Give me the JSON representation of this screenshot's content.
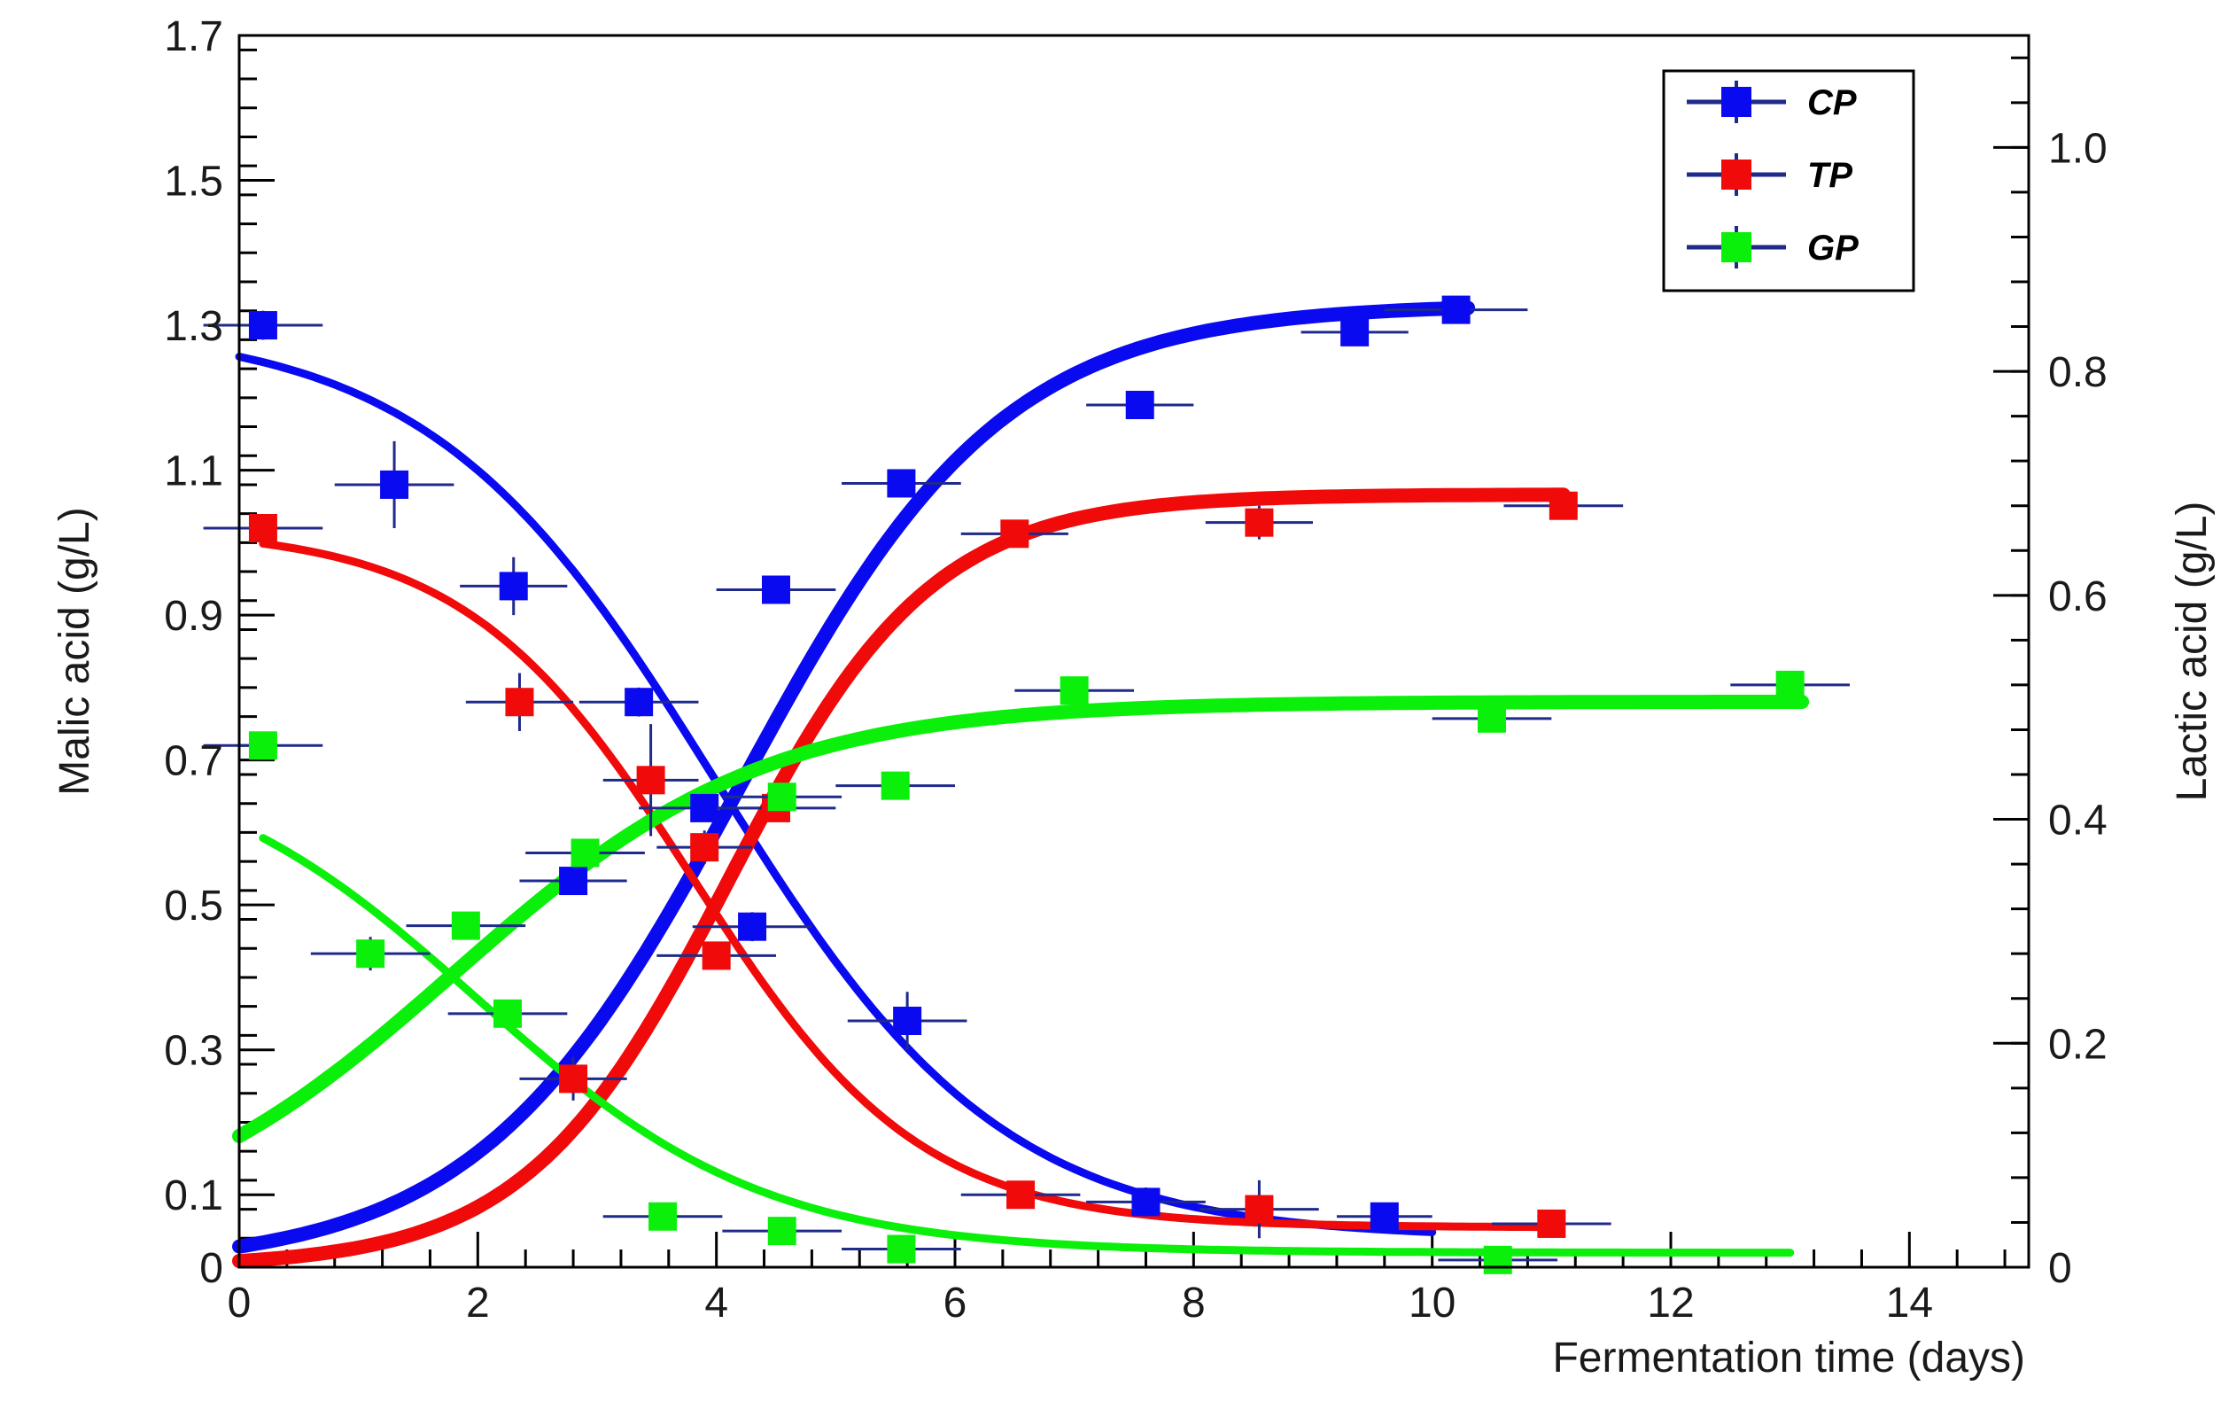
{
  "chart_data": {
    "type": "scatter",
    "title": "",
    "xlabel": "Fermentation time (days)",
    "ylabel_left": "Malic acid (g/L)",
    "ylabel_right": "Lactic acid (g/L)",
    "xlim": [
      0,
      15
    ],
    "ylim_left": [
      0,
      1.7
    ],
    "ylim_right": [
      0,
      1.1
    ],
    "x_ticks": [
      "0",
      "2",
      "4",
      "6",
      "8",
      "10",
      "12",
      "14"
    ],
    "y_left_ticks": [
      "0",
      "0.1",
      "0.3",
      "0.5",
      "0.7",
      "0.9",
      "1.1",
      "1.3",
      "1.5",
      "1.7"
    ],
    "y_right_ticks": [
      "0",
      "0.2",
      "0.4",
      "0.6",
      "0.8",
      "1.0"
    ],
    "legend_position": "top-right",
    "legend": [
      {
        "name": "CP",
        "color": "#0a0af0"
      },
      {
        "name": "TP",
        "color": "#f00a0a"
      },
      {
        "name": "GP",
        "color": "#0af00a"
      }
    ],
    "series": [
      {
        "name": "CP",
        "color": "#0a0af0",
        "malic_points": [
          {
            "x": 0.2,
            "y": 1.3,
            "xerr": 0.5,
            "yerr": 0.02
          },
          {
            "x": 1.3,
            "y": 1.08,
            "xerr": 0.5,
            "yerr": 0.06
          },
          {
            "x": 2.3,
            "y": 0.94,
            "xerr": 0.45,
            "yerr": 0.04
          },
          {
            "x": 3.35,
            "y": 0.78,
            "xerr": 0.5,
            "yerr": 0.02
          },
          {
            "x": 4.3,
            "y": 0.47,
            "xerr": 0.5,
            "yerr": 0.02
          },
          {
            "x": 5.6,
            "y": 0.34,
            "xerr": 0.5,
            "yerr": 0.04
          },
          {
            "x": 7.6,
            "y": 0.09,
            "xerr": 0.5,
            "yerr": 0.02
          },
          {
            "x": 9.6,
            "y": 0.07,
            "xerr": 0.4,
            "yerr": 0.01
          }
        ],
        "lactic_points": [
          {
            "x": 2.8,
            "y": 0.345,
            "xerr": 0.45,
            "yerr": 0.01
          },
          {
            "x": 3.9,
            "y": 0.41,
            "xerr": 0.55,
            "yerr": 0.01
          },
          {
            "x": 4.5,
            "y": 0.605,
            "xerr": 0.5,
            "yerr": 0.01
          },
          {
            "x": 5.55,
            "y": 0.7,
            "xerr": 0.5,
            "yerr": 0.01
          },
          {
            "x": 7.55,
            "y": 0.77,
            "xerr": 0.45,
            "yerr": 0.01
          },
          {
            "x": 9.35,
            "y": 0.835,
            "xerr": 0.45,
            "yerr": 0.01
          },
          {
            "x": 10.2,
            "y": 0.855,
            "xerr": 0.6,
            "yerr": 0.01
          }
        ],
        "malic_fit": {
          "y0": 1.3,
          "y_end": 0.04,
          "x_mid": 4.0,
          "width": 1.2,
          "x_range": [
            0.0,
            10.0
          ]
        },
        "lactic_fit": {
          "y0": 0.0,
          "y_end": 0.86,
          "x_mid": 4.2,
          "width": 1.1,
          "x_range": [
            0.0,
            10.3
          ]
        }
      },
      {
        "name": "TP",
        "color": "#f00a0a",
        "malic_points": [
          {
            "x": 0.2,
            "y": 1.02,
            "xerr": 0.5,
            "yerr": 0.01
          },
          {
            "x": 2.35,
            "y": 0.78,
            "xerr": 0.45,
            "yerr": 0.04
          },
          {
            "x": 2.8,
            "y": 0.26,
            "xerr": 0.45,
            "yerr": 0.03
          },
          {
            "x": 4.0,
            "y": 0.43,
            "xerr": 0.5,
            "yerr": 0.01
          },
          {
            "x": 6.55,
            "y": 0.1,
            "xerr": 0.5,
            "yerr": 0.01
          },
          {
            "x": 8.55,
            "y": 0.08,
            "xerr": 0.5,
            "yerr": 0.04
          },
          {
            "x": 11.0,
            "y": 0.06,
            "xerr": 0.5,
            "yerr": 0.01
          }
        ],
        "lactic_points": [
          {
            "x": 3.45,
            "y": 0.435,
            "xerr": 0.4,
            "yerr": 0.05
          },
          {
            "x": 3.9,
            "y": 0.375,
            "xerr": 0.4,
            "yerr": 0.015
          },
          {
            "x": 4.5,
            "y": 0.41,
            "xerr": 0.5,
            "yerr": 0.01
          },
          {
            "x": 6.5,
            "y": 0.655,
            "xerr": 0.45,
            "yerr": 0.01
          },
          {
            "x": 8.55,
            "y": 0.665,
            "xerr": 0.45,
            "yerr": 0.015
          },
          {
            "x": 11.1,
            "y": 0.68,
            "xerr": 0.5,
            "yerr": 0.01
          }
        ],
        "malic_fit": {
          "y0": 1.02,
          "y_end": 0.055,
          "x_mid": 3.8,
          "width": 0.95,
          "x_range": [
            0.2,
            11.0
          ]
        },
        "lactic_fit": {
          "y0": 0.0,
          "y_end": 0.69,
          "x_mid": 4.1,
          "width": 0.85,
          "x_range": [
            0.0,
            11.1
          ]
        }
      },
      {
        "name": "GP",
        "color": "#0af00a",
        "malic_points": [
          {
            "x": 0.2,
            "y": 0.72,
            "xerr": 0.5,
            "yerr": 0.01
          },
          {
            "x": 2.25,
            "y": 0.35,
            "xerr": 0.5,
            "yerr": 0.01
          },
          {
            "x": 3.55,
            "y": 0.07,
            "xerr": 0.5,
            "yerr": 0.01
          },
          {
            "x": 4.55,
            "y": 0.05,
            "xerr": 0.5,
            "yerr": 0.01
          },
          {
            "x": 5.55,
            "y": 0.025,
            "xerr": 0.5,
            "yerr": 0.01
          },
          {
            "x": 10.55,
            "y": 0.01,
            "xerr": 0.5,
            "yerr": 0.01
          }
        ],
        "lactic_points": [
          {
            "x": 1.1,
            "y": 0.28,
            "xerr": 0.5,
            "yerr": 0.015
          },
          {
            "x": 1.9,
            "y": 0.305,
            "xerr": 0.5,
            "yerr": 0.01
          },
          {
            "x": 2.9,
            "y": 0.37,
            "xerr": 0.5,
            "yerr": 0.01
          },
          {
            "x": 4.55,
            "y": 0.42,
            "xerr": 0.5,
            "yerr": 0.01
          },
          {
            "x": 5.5,
            "y": 0.43,
            "xerr": 0.5,
            "yerr": 0.01
          },
          {
            "x": 7.0,
            "y": 0.515,
            "xerr": 0.5,
            "yerr": 0.01
          },
          {
            "x": 10.5,
            "y": 0.49,
            "xerr": 0.5,
            "yerr": 0.01
          },
          {
            "x": 13.0,
            "y": 0.52,
            "xerr": 0.5,
            "yerr": 0.01
          }
        ],
        "malic_fit": {
          "y0": 0.72,
          "y_end": 0.02,
          "x_mid": 2.0,
          "width": 1.2,
          "x_range": [
            0.2,
            13.0
          ]
        },
        "lactic_fit": {
          "y0": 0.02,
          "y_end": 0.505,
          "x_mid": 1.8,
          "width": 1.3,
          "x_range": [
            0.0,
            13.1
          ]
        }
      }
    ]
  }
}
